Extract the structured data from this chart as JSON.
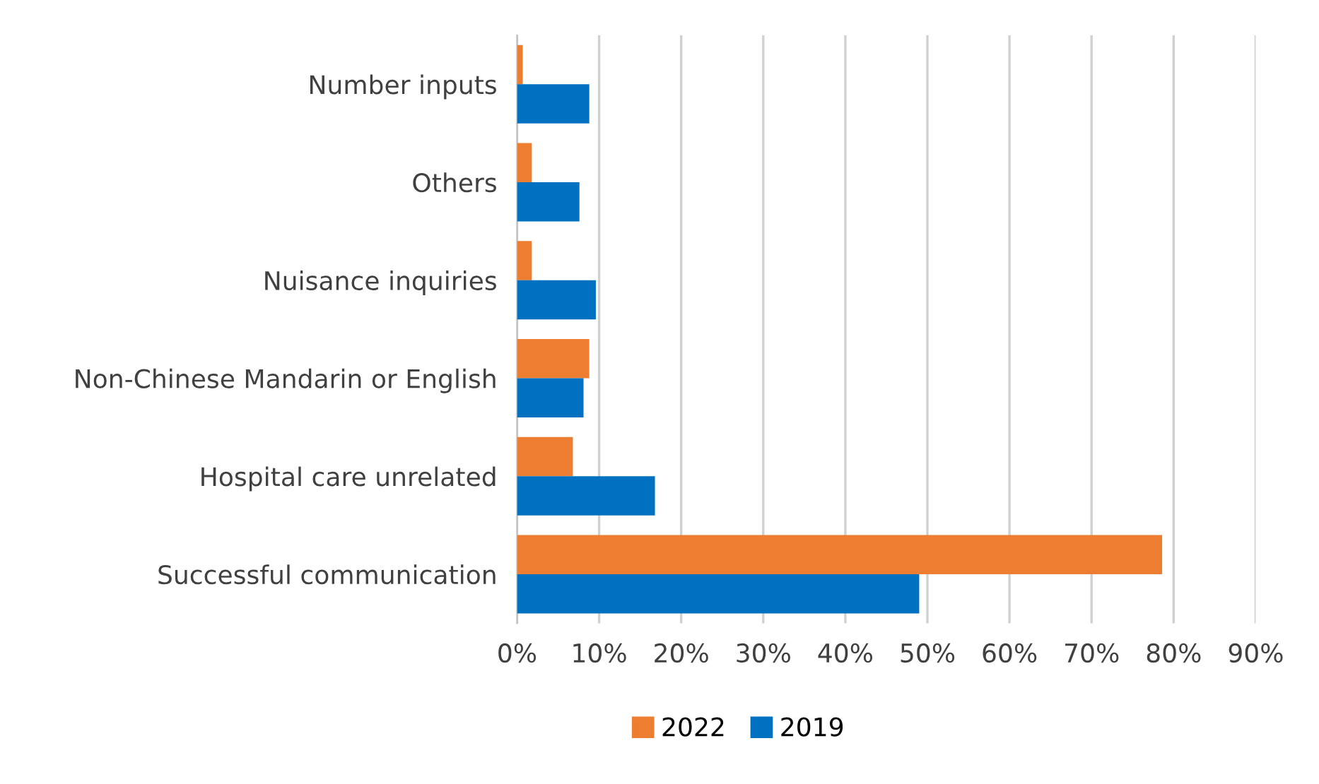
{
  "chart_data": {
    "type": "bar",
    "orientation": "horizontal",
    "categories": [
      "Number inputs",
      "Others",
      "Nuisance inquiries",
      "Non-Chinese Mandarin or English",
      "Hospital care unrelated",
      "Successful communication"
    ],
    "series": [
      {
        "name": "2022",
        "color": "#ed7d31",
        "values": [
          0.7,
          1.8,
          1.8,
          8.8,
          6.8,
          78.6
        ]
      },
      {
        "name": "2019",
        "color": "#0070c0",
        "values": [
          8.8,
          7.6,
          9.6,
          8.1,
          16.8,
          49.0
        ]
      }
    ],
    "xlim": [
      0,
      90
    ],
    "xticks": [
      {
        "value": 0,
        "label": "0%"
      },
      {
        "value": 10,
        "label": "10%"
      },
      {
        "value": 20,
        "label": "20%"
      },
      {
        "value": 30,
        "label": "30%"
      },
      {
        "value": 40,
        "label": "40%"
      },
      {
        "value": 50,
        "label": "50%"
      },
      {
        "value": 60,
        "label": "60%"
      },
      {
        "value": 70,
        "label": "70%"
      },
      {
        "value": 80,
        "label": "80%"
      },
      {
        "value": 90,
        "label": "90%"
      }
    ],
    "grid": "x",
    "legend": "bottom"
  }
}
